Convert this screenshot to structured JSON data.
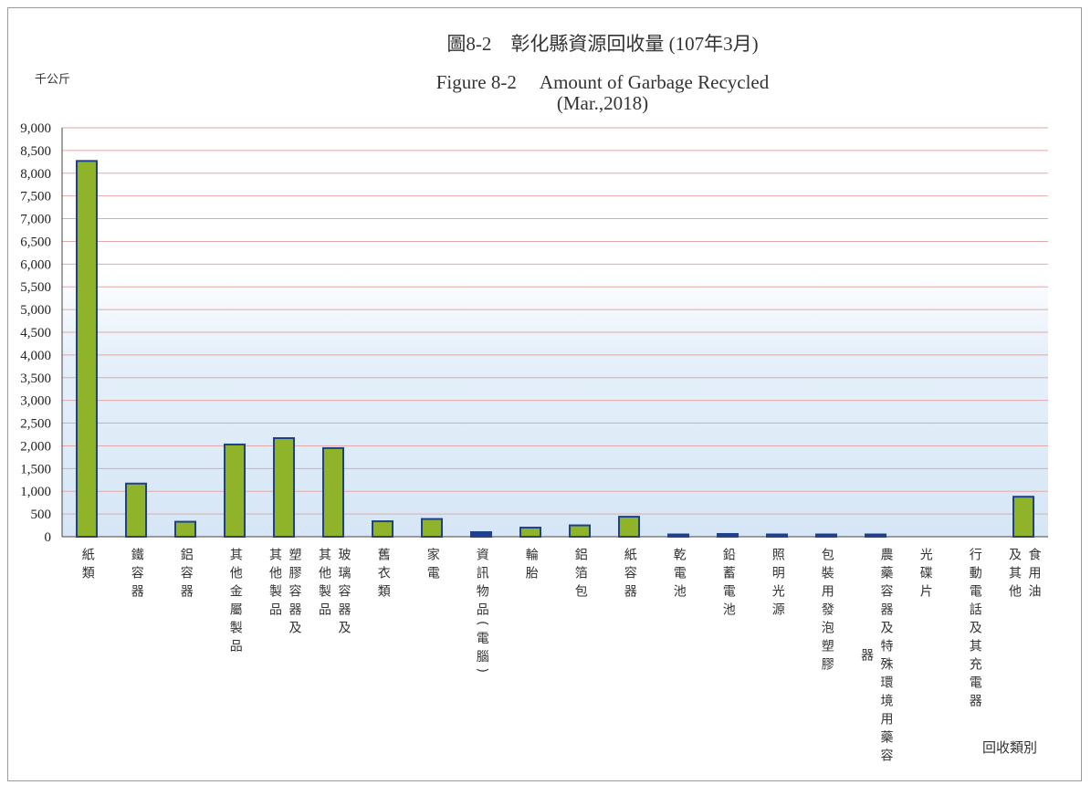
{
  "colors": {
    "bar_fill": "#8fb329",
    "bar_stroke": "#1f3f8f",
    "grid": "#e3a9a4",
    "background_tint": "#d9e8f7"
  },
  "chart_data": {
    "type": "bar",
    "title": "圖8-2　彰化縣資源回收量 (107年3月)",
    "subtitle_en": "Figure 8-2　 Amount of Garbage Recycled",
    "subtitle_date": "(Mar.,2018)",
    "ylabel": "千公斤",
    "xlabel": "回收類別",
    "ylim": [
      0,
      9000
    ],
    "yticks": [
      "9,000",
      "8,500",
      "8,000",
      "7,500",
      "7,000",
      "6,500",
      "6,000",
      "5,500",
      "5,000",
      "4,500",
      "4,000",
      "3,500",
      "3,000",
      "2,500",
      "2,000",
      "1,500",
      "1,000",
      "500",
      "0"
    ],
    "grid": true,
    "categories": [
      "紙類",
      "鐵容器",
      "鋁容器",
      "其他金屬製品",
      "塑膠容器及其他製品",
      "玻璃容器及其他製品",
      "舊衣類",
      "家電",
      "資訊物品(電腦)",
      "輪胎",
      "鋁箔包",
      "紙容器",
      "乾電池",
      "鉛蓄電池",
      "照明光源",
      "包裝用發泡塑膠",
      "農藥容器及特殊環境用藥容器",
      "光碟片",
      "行動電話及其充電器",
      "食用油及其他"
    ],
    "label_columns": [
      [
        "紙類"
      ],
      [
        "鐵容器"
      ],
      [
        "鋁容器"
      ],
      [
        "其他金屬製品"
      ],
      [
        "其他製品",
        "塑膠容器及"
      ],
      [
        "其他製品",
        "玻璃容器及"
      ],
      [
        "舊衣類"
      ],
      [
        "家電"
      ],
      [
        "資訊物品(電腦)"
      ],
      [
        "輪胎"
      ],
      [
        "鋁箔包"
      ],
      [
        "紙容器"
      ],
      [
        "乾電池"
      ],
      [
        "鉛蓄電池"
      ],
      [
        "照明光源"
      ],
      [
        "包裝用發泡塑膠"
      ],
      [
        "器",
        "農藥容器及特殊環境用藥容"
      ],
      [
        "光碟片"
      ],
      [
        "行動電話及其充電器"
      ],
      [
        "及其他",
        "食用油"
      ]
    ],
    "values": [
      8270,
      1170,
      330,
      2030,
      2170,
      1950,
      340,
      390,
      100,
      200,
      250,
      440,
      50,
      60,
      50,
      50,
      50,
      0,
      0,
      880
    ]
  }
}
